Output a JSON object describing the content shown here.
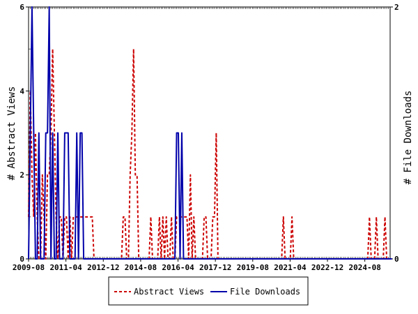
{
  "chart_data": {
    "type": "line",
    "title": "",
    "x_tick_labels": [
      "2009-08",
      "2011-04",
      "2012-12",
      "2014-08",
      "2016-04",
      "2017-12",
      "2019-08",
      "2021-04",
      "2022-12",
      "2024-08"
    ],
    "y_left_label": "# Abstract Views",
    "y_right_label": "# File Downloads",
    "y_left_range": [
      0,
      6
    ],
    "y_right_range": [
      0,
      2
    ],
    "y_left_ticks": [
      "0",
      "2",
      "4",
      "6"
    ],
    "y_right_ticks": [
      "0",
      "2"
    ],
    "legend_position": "bottom",
    "grid": false,
    "series": [
      {
        "name": "Abstract Views",
        "axis": "left",
        "color": "#cc0000",
        "style": "dashed",
        "values": [
          1,
          4,
          2,
          1,
          3,
          1,
          0,
          0,
          2,
          1,
          0,
          2,
          2,
          3,
          5,
          3,
          1,
          0,
          1,
          1,
          0,
          1,
          1,
          0,
          1,
          0,
          1,
          1,
          1,
          1,
          1,
          1,
          1,
          1,
          1,
          1,
          1,
          1,
          0,
          0,
          0,
          0,
          0,
          0,
          0,
          0,
          0,
          0,
          0,
          0,
          0,
          0,
          0,
          0,
          0,
          1,
          1,
          0,
          0,
          2,
          3,
          5,
          2,
          2,
          0,
          0,
          0,
          0,
          0,
          0,
          0,
          1,
          0,
          0,
          0,
          0,
          1,
          0,
          1,
          0,
          1,
          0,
          0,
          1,
          0,
          0,
          1,
          1,
          1,
          1,
          1,
          1,
          1,
          0,
          2,
          0,
          1,
          0,
          0,
          0,
          0,
          0,
          1,
          1,
          0,
          0,
          0,
          1,
          1,
          3,
          0,
          0,
          0,
          0,
          0,
          0,
          0,
          0,
          0,
          0,
          0,
          0,
          0,
          0,
          0,
          0,
          0,
          0,
          0,
          0,
          0,
          0,
          0,
          0,
          0,
          0,
          0,
          0,
          0,
          0,
          0,
          0,
          0,
          0,
          0,
          0,
          0,
          0,
          1,
          0,
          0,
          0,
          0,
          1,
          0,
          0,
          0,
          0,
          0,
          0,
          0,
          0,
          0,
          0,
          0,
          0,
          0,
          0,
          0,
          0,
          0,
          0,
          0,
          0,
          0,
          0,
          0,
          0,
          0,
          0,
          0,
          0,
          0,
          0,
          0,
          0,
          0,
          0,
          0,
          0,
          0,
          0,
          0,
          0,
          0,
          0,
          0,
          0,
          1,
          0,
          0,
          0,
          1,
          0,
          0,
          0,
          0,
          1,
          0,
          0,
          0
        ]
      },
      {
        "name": "File Downloads",
        "axis": "right",
        "color": "#0000aa",
        "style": "solid",
        "values": [
          0,
          1,
          2,
          1,
          0,
          0,
          1,
          0,
          0,
          0,
          1,
          1,
          2,
          0,
          1,
          0,
          0,
          1,
          0,
          0,
          0,
          1,
          1,
          1,
          0,
          0,
          0,
          0,
          1,
          0,
          1,
          1,
          0,
          0,
          0,
          0,
          0,
          0,
          0,
          0,
          0,
          0,
          0,
          0,
          0,
          0,
          0,
          0,
          0,
          0,
          0,
          0,
          0,
          0,
          0,
          0,
          0,
          0,
          0,
          0,
          0,
          0,
          0,
          0,
          0,
          0,
          0,
          0,
          0,
          0,
          0,
          0,
          0,
          0,
          0,
          0,
          0,
          0,
          0,
          0,
          0,
          0,
          0,
          0,
          0,
          0,
          1,
          1,
          0,
          1,
          0,
          0,
          0,
          0,
          0,
          0,
          0,
          0,
          0,
          0,
          0,
          0,
          0,
          0,
          0,
          0,
          0,
          0,
          0,
          0,
          0,
          0,
          0,
          0,
          0,
          0,
          0,
          0,
          0,
          0,
          0,
          0,
          0,
          0,
          0,
          0,
          0,
          0,
          0,
          0,
          0,
          0,
          0,
          0,
          0,
          0,
          0,
          0,
          0,
          0,
          0,
          0,
          0,
          0,
          0,
          0,
          0,
          0,
          0,
          0,
          0,
          0,
          0,
          0,
          0,
          0,
          0,
          0,
          0,
          0,
          0,
          0,
          0,
          0,
          0,
          0,
          0,
          0,
          0,
          0,
          0,
          0,
          0,
          0,
          0,
          0,
          0,
          0,
          0,
          0,
          0,
          0,
          0,
          0,
          0,
          0,
          0,
          0,
          0,
          0,
          0,
          0,
          0,
          0,
          0,
          0,
          0,
          0,
          0,
          0,
          0,
          0,
          0,
          0,
          0,
          0,
          0,
          0,
          0,
          0,
          0,
          0
        ]
      }
    ]
  }
}
